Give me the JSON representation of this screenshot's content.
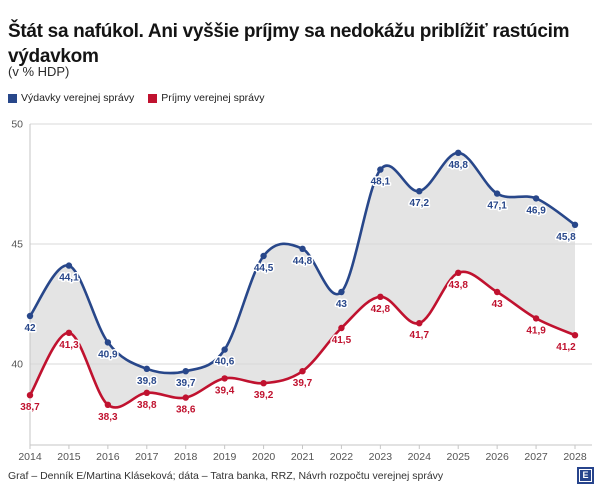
{
  "title": "Štát sa nafúkol. Ani vyššie príjmy sa nedokážu priblížiť rastúcim výdavkom",
  "subtitle": "(v % HDP)",
  "colors": {
    "expenditure_blue": "#28478a",
    "income_red": "#c0122f",
    "area_fill": "#e4e4e4",
    "gridline": "#d9d9d9",
    "axis_line": "#c6c6c6",
    "tick_text": "#555555",
    "logo_blue": "#27448c"
  },
  "chart_data": {
    "type": "line",
    "title": "Štát sa nafúkol. Ani vyššie príjmy sa nedokážu priblížiť rastúcim výdavkom",
    "subtitle": "(v % HDP)",
    "xlabel": "",
    "ylabel": "v % HDP",
    "categories": [
      "2014",
      "2015",
      "2016",
      "2017",
      "2018",
      "2019",
      "2020",
      "2021",
      "2022",
      "2023",
      "2024",
      "2025",
      "2026",
      "2027",
      "2028"
    ],
    "series": [
      {
        "name": "Výdavky verejnej správy",
        "color": "#28478a",
        "values": [
          42,
          44.1,
          40.9,
          39.8,
          39.7,
          40.6,
          44.5,
          44.8,
          43,
          48.1,
          47.2,
          48.8,
          47.1,
          46.9,
          45.8
        ],
        "labels": [
          "42",
          "44,1",
          "40,9",
          "39,8",
          "39,7",
          "40,6",
          "44,5",
          "44,8",
          "43",
          "48,1",
          "47,2",
          "48,8",
          "47,1",
          "46,9",
          "45,8"
        ]
      },
      {
        "name": "Príjmy verejnej správy",
        "color": "#c0122f",
        "values": [
          38.7,
          41.3,
          38.3,
          38.8,
          38.6,
          39.4,
          39.2,
          39.7,
          41.5,
          42.8,
          41.7,
          43.8,
          43,
          41.9,
          41.2
        ],
        "labels": [
          "38,7",
          "41,3",
          "38,3",
          "38,8",
          "38,6",
          "39,4",
          "39,2",
          "39,7",
          "41,5",
          "42,8",
          "41,7",
          "43,8",
          "43",
          "41,9",
          "41,2"
        ]
      }
    ],
    "yticks": [
      40,
      45,
      50
    ],
    "ylim": [
      36.6,
      50.3
    ],
    "grid": true,
    "legend_position": "top",
    "area_fill_between_series": true
  },
  "footer": {
    "credit": "Graf – Denník E/Martina Kláseková; dáta – Tatra banka, RRZ, Návrh rozpočtu verejnej správy",
    "logo_letter": "E"
  }
}
